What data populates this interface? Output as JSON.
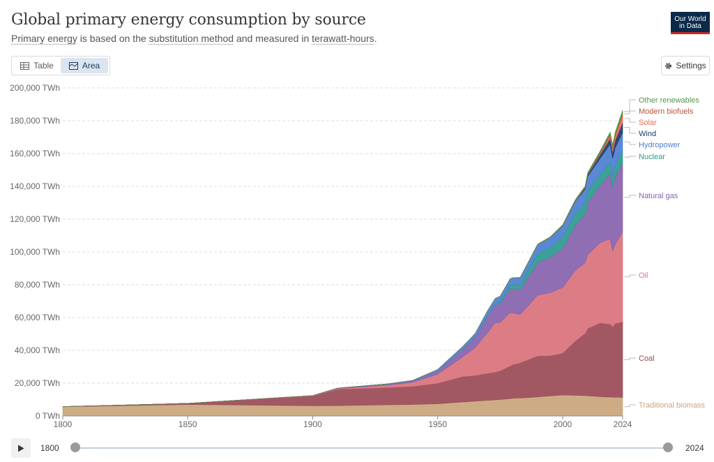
{
  "header": {
    "title": "Global primary energy consumption by source",
    "subtitle_parts": [
      "Primary energy",
      " is based on the ",
      "substitution method",
      " and measured in ",
      "terawatt-hours",
      "."
    ],
    "logo_line1": "Our World",
    "logo_line2": "in Data"
  },
  "controls": {
    "table_label": "Table",
    "area_label": "Area",
    "settings_label": "Settings"
  },
  "timeline": {
    "start": "1800",
    "end": "2024"
  },
  "chart_data": {
    "type": "area",
    "stacked": true,
    "title": "Global primary energy consumption by source",
    "xlim": [
      1800,
      2024
    ],
    "ylim": [
      0,
      200000
    ],
    "x_ticks": [
      1800,
      1850,
      1900,
      1950,
      2000,
      2024
    ],
    "y_ticks": [
      0,
      20000,
      40000,
      60000,
      80000,
      100000,
      120000,
      140000,
      160000,
      180000,
      200000
    ],
    "y_tick_labels": [
      "0 TWh",
      "20,000 TWh",
      "40,000 TWh",
      "60,000 TWh",
      "80,000 TWh",
      "100,000 TWh",
      "120,000 TWh",
      "140,000 TWh",
      "160,000 TWh",
      "180,000 TWh",
      "200,000 TWh"
    ],
    "grid": "horizontal dashed",
    "legend_placement": "right, inline labels",
    "x": [
      1800,
      1850,
      1900,
      1910,
      1930,
      1940,
      1950,
      1960,
      1965,
      1970,
      1973,
      1975,
      1979,
      1980,
      1983,
      1990,
      1995,
      2000,
      2005,
      2009,
      2010,
      2015,
      2019,
      2020,
      2021,
      2024
    ],
    "series": [
      {
        "name": "Traditional biomass",
        "color": "#c9a57b",
        "values": [
          5600,
          7000,
          6200,
          6300,
          6800,
          7000,
          7400,
          8500,
          9000,
          9500,
          9800,
          10000,
          10500,
          10800,
          10900,
          11600,
          12200,
          12800,
          12600,
          12400,
          12300,
          11700,
          11500,
          11400,
          11400,
          11300
        ]
      },
      {
        "name": "Coal",
        "color": "#9a4a55",
        "values": [
          100,
          700,
          6000,
          10000,
          10500,
          11000,
          12500,
          15500,
          15700,
          16500,
          17000,
          17500,
          20000,
          20500,
          21500,
          25000,
          24500,
          25500,
          33000,
          38000,
          41000,
          45000,
          44500,
          43000,
          45000,
          46000
        ]
      },
      {
        "name": "Oil",
        "color": "#d9727c",
        "values": [
          0,
          0,
          200,
          400,
          1500,
          2500,
          5500,
          12000,
          17000,
          25000,
          30000,
          29500,
          32500,
          31500,
          29500,
          37000,
          38500,
          40000,
          43000,
          43000,
          45000,
          49000,
          52000,
          46000,
          48000,
          55000
        ]
      },
      {
        "name": "Natural gas",
        "color": "#8662ad",
        "values": [
          0,
          0,
          50,
          200,
          500,
          800,
          2000,
          4500,
          6000,
          10000,
          11000,
          11500,
          14500,
          15000,
          15000,
          20000,
          21500,
          24000,
          27500,
          29500,
          32000,
          35000,
          40000,
          39000,
          41500,
          42000
        ]
      },
      {
        "name": "Nuclear",
        "color": "#2b9a8e",
        "values": [
          0,
          0,
          0,
          0,
          0,
          0,
          0,
          0,
          50,
          250,
          500,
          1000,
          2100,
          2300,
          3100,
          5400,
          6000,
          6800,
          7100,
          6900,
          7000,
          6400,
          6700,
          6400,
          6600,
          7000
        ]
      },
      {
        "name": "Hydropower",
        "color": "#4c7fd0",
        "values": [
          0,
          0,
          0,
          100,
          250,
          400,
          900,
          1800,
          2500,
          3000,
          3300,
          3500,
          4000,
          4000,
          4300,
          5400,
          6000,
          6800,
          7500,
          8500,
          8800,
          10000,
          11000,
          11200,
          11000,
          11600
        ]
      },
      {
        "name": "Wind",
        "color": "#1a3a6a",
        "values": [
          0,
          0,
          0,
          0,
          0,
          0,
          0,
          0,
          0,
          0,
          0,
          0,
          0,
          0,
          0,
          0,
          10,
          80,
          250,
          700,
          900,
          2200,
          3500,
          3900,
          4500,
          6000
        ]
      },
      {
        "name": "Solar",
        "color": "#e96a4f",
        "values": [
          0,
          0,
          0,
          0,
          0,
          0,
          0,
          0,
          0,
          0,
          0,
          0,
          0,
          0,
          0,
          0,
          0,
          5,
          10,
          50,
          80,
          600,
          1800,
          2200,
          2700,
          4800
        ]
      },
      {
        "name": "Modern biofuels",
        "color": "#b5533a",
        "values": [
          0,
          0,
          0,
          0,
          0,
          0,
          0,
          0,
          0,
          0,
          0,
          0,
          50,
          60,
          80,
          150,
          180,
          200,
          300,
          550,
          600,
          750,
          850,
          800,
          900,
          1100
        ]
      },
      {
        "name": "Other renewables",
        "color": "#52964a",
        "values": [
          0,
          0,
          0,
          0,
          0,
          0,
          0,
          0,
          0,
          0,
          0,
          0,
          100,
          120,
          150,
          250,
          300,
          400,
          500,
          650,
          700,
          1000,
          1300,
          1350,
          1400,
          1700
        ]
      }
    ]
  }
}
